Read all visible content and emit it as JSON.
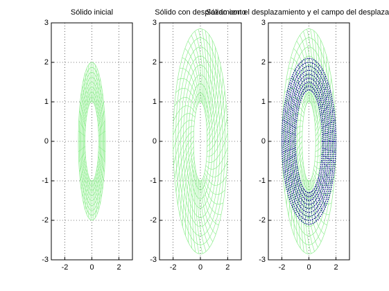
{
  "chart_data": [
    {
      "type": "mesh",
      "title": "Sólido inicial",
      "xlim": [
        -3,
        3
      ],
      "ylim": [
        -3,
        3
      ],
      "xticks": [
        -2,
        0,
        2
      ],
      "yticks": [
        -3,
        -2,
        -1,
        0,
        1,
        2,
        3
      ],
      "grid": true,
      "series": [
        {
          "color": "#90ee90",
          "style": "solid",
          "spokes": 48,
          "twist": 0,
          "rx": [
            0.5,
            0.5625,
            0.625,
            0.6875,
            0.75,
            0.8125,
            0.875,
            0.9375,
            1
          ],
          "ry": [
            1,
            1.125,
            1.25,
            1.375,
            1.5,
            1.625,
            1.75,
            1.875,
            2
          ]
        }
      ]
    },
    {
      "type": "mesh",
      "title": "Sólido con desplazamiento",
      "xlim": [
        -3,
        3
      ],
      "ylim": [
        -3,
        3
      ],
      "xticks": [
        -2,
        0,
        2
      ],
      "yticks": [
        -3,
        -2,
        -1,
        0,
        1,
        2,
        3
      ],
      "grid": true,
      "series": [
        {
          "color": "#90ee90",
          "style": "solid",
          "spokes": 48,
          "twist": 0.6,
          "rx": [
            0.5,
            0.69,
            0.88,
            1.06,
            1.25,
            1.44,
            1.63,
            1.81,
            2
          ],
          "ry": [
            1,
            1.23,
            1.46,
            1.69,
            1.93,
            2.16,
            2.39,
            2.62,
            2.85
          ]
        }
      ]
    },
    {
      "type": "mesh",
      "title": "Sólido con el desplazamiento y el campo del desplazamiento",
      "xlim": [
        -3,
        3
      ],
      "ylim": [
        -3,
        3
      ],
      "xticks": [
        -2,
        0,
        2
      ],
      "yticks": [
        -3,
        -2,
        -1,
        0,
        1,
        2,
        3
      ],
      "grid": true,
      "series": [
        {
          "color": "#90ee90",
          "style": "solid",
          "spokes": 48,
          "twist": 0.6,
          "rx": [
            0.5,
            0.69,
            0.88,
            1.06,
            1.25,
            1.44,
            1.63,
            1.81,
            2
          ],
          "ry": [
            1,
            1.23,
            1.46,
            1.69,
            1.93,
            2.16,
            2.39,
            2.62,
            2.85
          ]
        },
        {
          "color": "#00008b",
          "style": "dotted",
          "spokes": 48,
          "twist": 0,
          "rx": [
            1,
            1.12,
            1.25,
            1.38,
            1.5,
            1.62,
            1.75,
            1.88,
            2
          ],
          "ry": [
            1.3,
            1.4,
            1.5,
            1.6,
            1.7,
            1.8,
            1.9,
            2,
            2.1
          ]
        }
      ]
    }
  ]
}
